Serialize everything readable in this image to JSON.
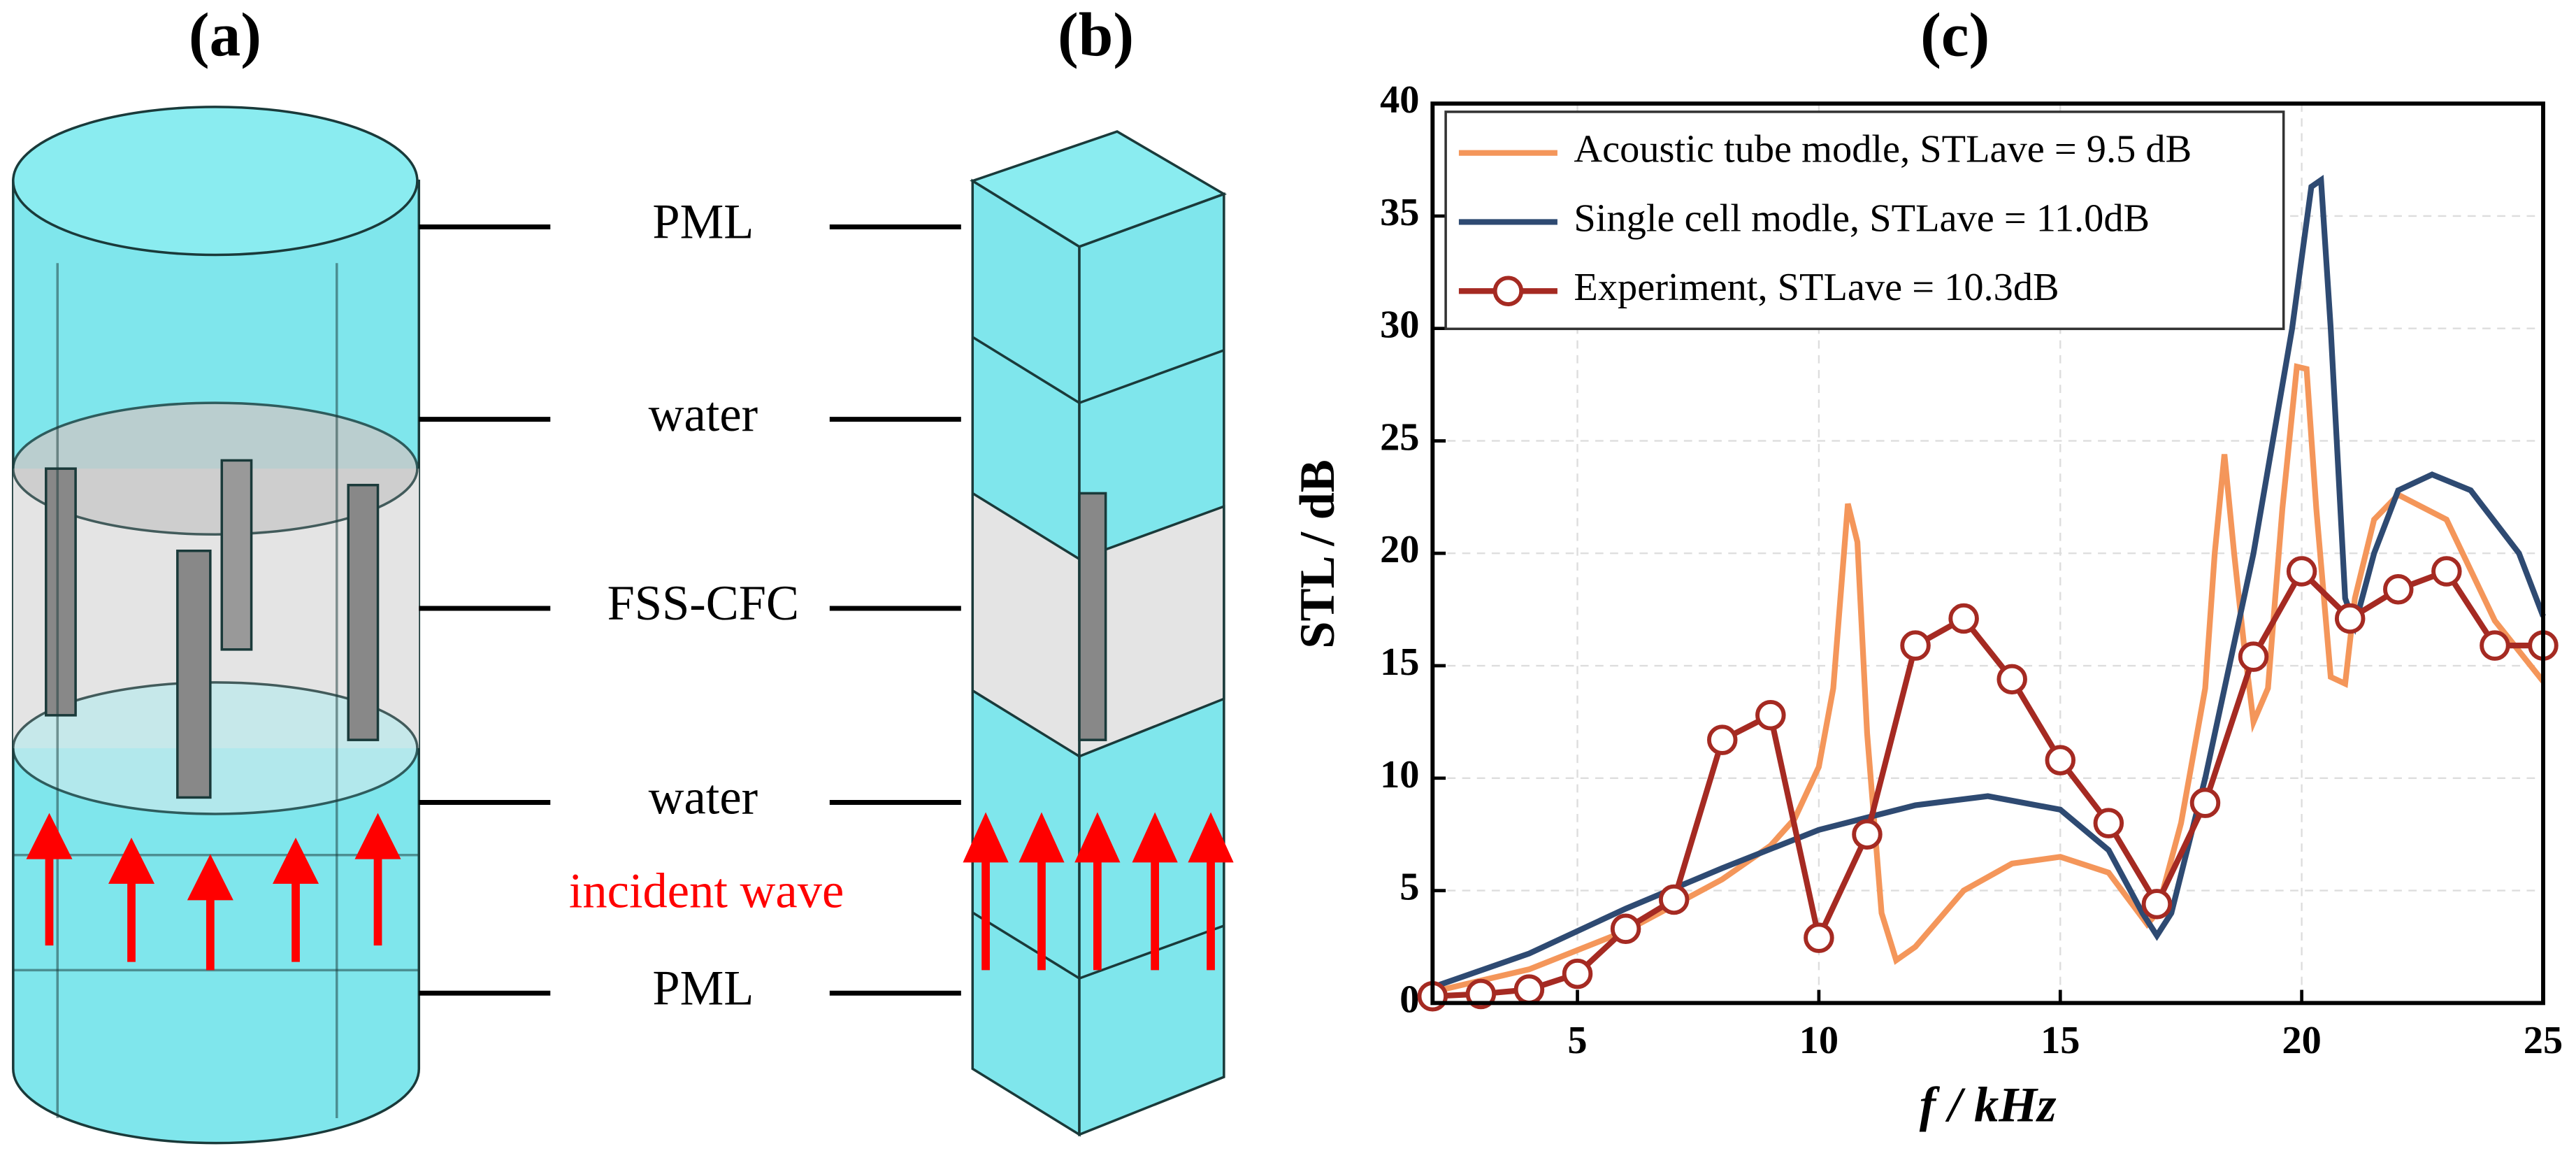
{
  "diagram": {
    "labels": [
      "(a)",
      "(b)"
    ],
    "layers": [
      "PML",
      "water",
      "FSS-CFC",
      "water",
      "PML"
    ],
    "annotation": "incident wave"
  },
  "chart_data": {
    "type": "line",
    "title": "(c)",
    "x_label": "f / kHz",
    "y_label": "STL / dB",
    "xlim": [
      2,
      25
    ],
    "ylim": [
      0,
      40
    ],
    "xticks": [
      5,
      10,
      15,
      20,
      25
    ],
    "yticks": [
      0,
      5,
      10,
      15,
      20,
      25,
      30,
      35,
      40
    ],
    "grid": true,
    "legend": "upper left",
    "series": [
      {
        "name": "Acoustic tube modle, STLave = 9.5 dB",
        "color": "#f4965a",
        "x": [
          2,
          4,
          6,
          8,
          9,
          9.5,
          10,
          10.3,
          10.6,
          10.8,
          11,
          11.3,
          11.6,
          12,
          13,
          14,
          15,
          16,
          16.8,
          17,
          17.5,
          18,
          18.2,
          18.4,
          18.6,
          18.8,
          19,
          19.3,
          19.6,
          19.9,
          20.1,
          20.3,
          20.6,
          20.9,
          21.1,
          21.5,
          22,
          23,
          24,
          25
        ],
        "values": [
          0.5,
          1.5,
          3.2,
          5.5,
          7.0,
          8.2,
          10.5,
          14,
          22.2,
          20.5,
          12,
          4,
          1.9,
          2.5,
          5,
          6.2,
          6.5,
          5.8,
          3.5,
          4,
          8,
          14,
          20,
          24.4,
          20,
          16,
          12.5,
          14,
          22,
          28.3,
          28.2,
          22,
          14.5,
          14.2,
          18,
          21.5,
          22.6,
          21.5,
          17,
          14.3
        ]
      },
      {
        "name": "Single cell modle, STLave = 11.0dB",
        "color": "#2e4a72",
        "x": [
          2,
          4,
          6,
          8,
          10,
          12,
          13.5,
          15,
          16,
          16.7,
          17,
          17.3,
          18,
          19,
          19.8,
          20.2,
          20.4,
          20.6,
          20.9,
          21.1,
          21.5,
          22,
          22.7,
          23.5,
          24.5,
          25
        ],
        "values": [
          0.7,
          2.2,
          4.2,
          6.0,
          7.7,
          8.8,
          9.2,
          8.6,
          6.8,
          4,
          3.0,
          4,
          10,
          20,
          30,
          36.3,
          36.6,
          30,
          18,
          16.8,
          20,
          22.8,
          23.5,
          22.8,
          20,
          17.2
        ]
      },
      {
        "name": "Experiment, STLave = 10.3dB",
        "color": "#a52a22",
        "marker": "circle",
        "x": [
          2,
          3,
          4,
          5,
          6,
          7,
          8,
          9,
          10,
          11,
          12,
          13,
          14,
          15,
          16,
          17,
          18,
          19,
          20,
          21,
          22,
          23,
          24,
          25
        ],
        "values": [
          0.3,
          0.4,
          0.6,
          1.3,
          3.3,
          4.6,
          11.7,
          12.8,
          2.9,
          7.5,
          15.9,
          17.1,
          14.4,
          10.8,
          8.0,
          4.4,
          8.9,
          15.4,
          19.2,
          17.1,
          18.4,
          19.2,
          15.9,
          15.9
        ]
      }
    ]
  }
}
